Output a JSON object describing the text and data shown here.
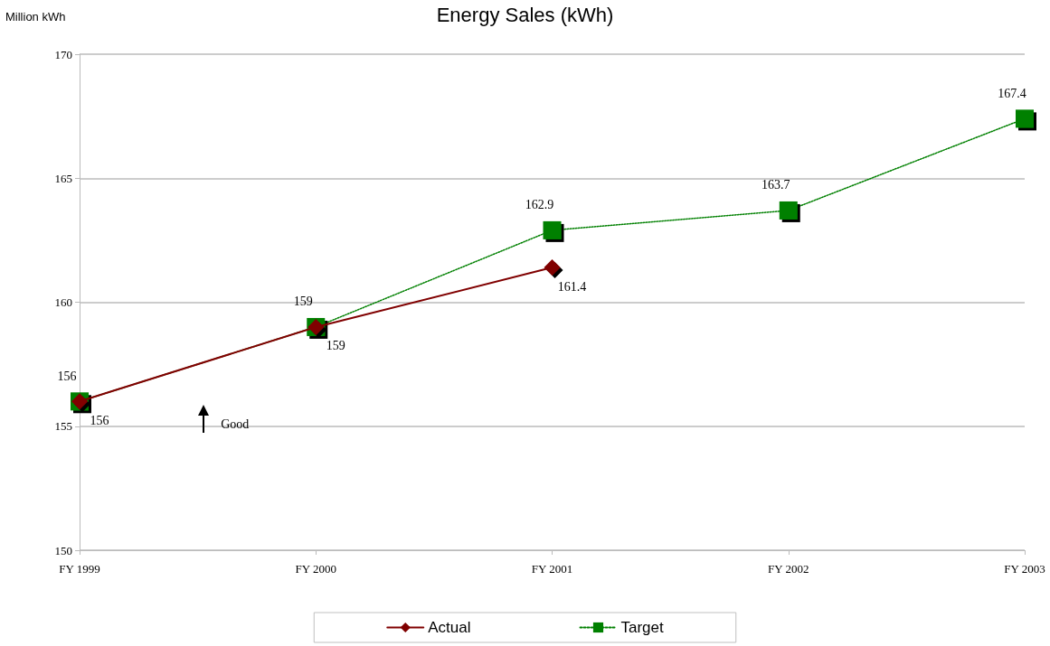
{
  "chart_data": {
    "type": "line",
    "title": "Energy Sales (kWh)",
    "ylabel": "Million kWh",
    "categories": [
      "FY 1999",
      "FY 2000",
      "FY 2001",
      "FY 2002",
      "FY 2003"
    ],
    "series": [
      {
        "name": "Actual",
        "color": "#800000",
        "values": [
          156,
          159,
          161.4,
          null,
          null
        ],
        "marker": "diamond",
        "line_style": "solid"
      },
      {
        "name": "Target",
        "color": "#008000",
        "values": [
          156,
          159,
          162.9,
          163.7,
          167.4
        ],
        "marker": "square",
        "line_style": "dotted"
      }
    ],
    "ylim": [
      150,
      170
    ],
    "yticks": [
      150,
      155,
      160,
      165,
      170
    ],
    "grid": "y",
    "legend": "bottom",
    "data_labels": true,
    "annotations": [
      "Good"
    ]
  }
}
